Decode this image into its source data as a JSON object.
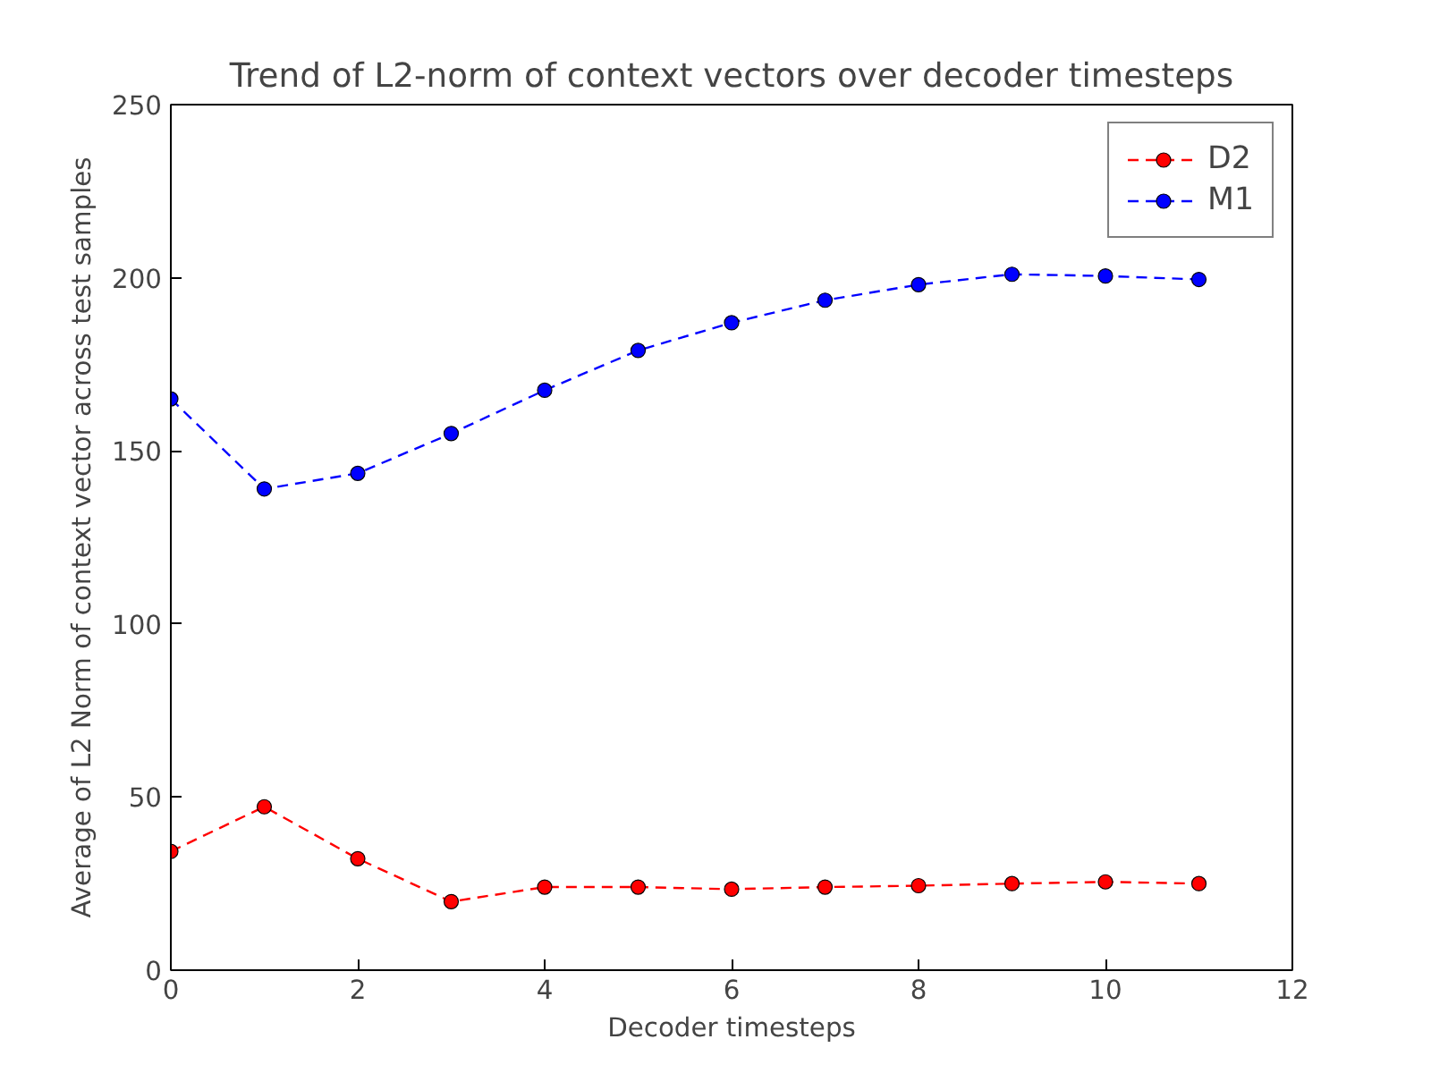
{
  "chart_data": {
    "type": "line",
    "title": "Trend of L2-norm of context vectors over decoder timesteps",
    "xlabel": "Decoder timesteps",
    "ylabel": "Average of L2 Norm of context vector across test samples",
    "x": [
      0,
      1,
      2,
      3,
      4,
      5,
      6,
      7,
      8,
      9,
      10,
      11
    ],
    "series": [
      {
        "name": "D2",
        "color": "#ff0000",
        "values": [
          34.3,
          47.2,
          32.2,
          19.8,
          24,
          24,
          23.4,
          24,
          24.4,
          25,
          25.5,
          25
        ]
      },
      {
        "name": "M1",
        "color": "#0000ff",
        "values": [
          165,
          139,
          143.5,
          155,
          167.5,
          179,
          187,
          193.5,
          198,
          201,
          200.5,
          199.5
        ]
      }
    ],
    "xlim": [
      0,
      12
    ],
    "xticks": [
      0,
      2,
      4,
      6,
      8,
      10,
      12
    ],
    "ylim": [
      0,
      250
    ],
    "yticks": [
      0,
      50,
      100,
      150,
      200,
      250
    ],
    "grid": false,
    "legend": "top right",
    "marker": "circle",
    "line_style": "dashed"
  }
}
